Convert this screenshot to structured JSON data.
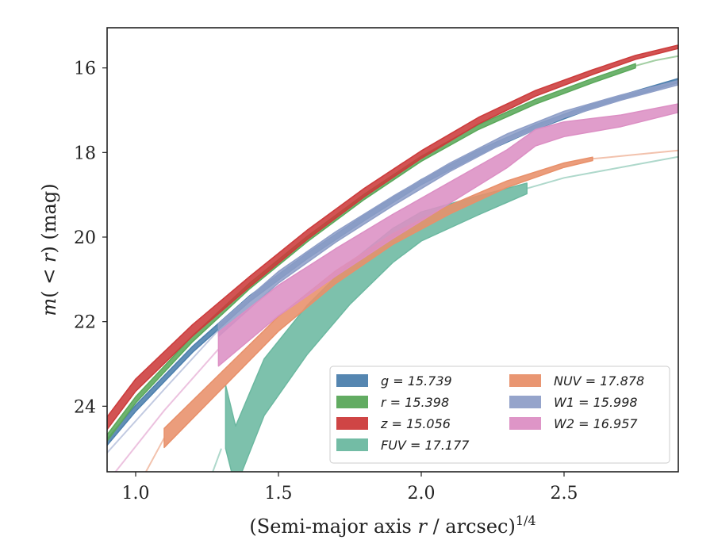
{
  "chart_data": {
    "type": "line",
    "xlabel": "(Semi-major axis r / arcsec)^1/4",
    "ylabel": "m(< r) (mag)",
    "xlim": [
      0.9,
      2.9
    ],
    "ylim": [
      25.55,
      15.05
    ],
    "y_inverted": true,
    "grid": false,
    "legend_position": "bottom-right",
    "legend_columns": 2,
    "x_ticks": [
      {
        "value": 1.0,
        "label": "1.0"
      },
      {
        "value": 1.5,
        "label": "1.5"
      },
      {
        "value": 2.0,
        "label": "2.0"
      },
      {
        "value": 2.5,
        "label": "2.5"
      }
    ],
    "y_ticks": [
      {
        "value": 16,
        "label": "16"
      },
      {
        "value": 18,
        "label": "18"
      },
      {
        "value": 20,
        "label": "20"
      },
      {
        "value": 22,
        "label": "22"
      },
      {
        "value": 24,
        "label": "24"
      }
    ],
    "series": [
      {
        "name": "g = 15.739",
        "sym": "g",
        "rest": " = 15.739",
        "color": "#4c7fad",
        "measured": [
          [
            0.9,
            24.85
          ],
          [
            1.0,
            24.05
          ],
          [
            1.2,
            22.65
          ],
          [
            1.4,
            21.45
          ],
          [
            1.6,
            20.45
          ],
          [
            1.8,
            19.55
          ],
          [
            2.0,
            18.7
          ],
          [
            2.2,
            18.0
          ],
          [
            2.4,
            17.4
          ],
          [
            2.6,
            16.9
          ],
          [
            2.75,
            16.6
          ],
          [
            2.9,
            16.3
          ]
        ],
        "width_start": [
          1.0,
          0.15
        ],
        "width_end": [
          1.0,
          0.1
        ],
        "extrap_start": [],
        "extrap_end": [
          [
            2.9,
            16.3
          ],
          [
            2.9,
            16.1
          ]
        ]
      },
      {
        "name": "r = 15.398",
        "sym": "r",
        "rest": " = 15.398",
        "color": "#5aa85a",
        "measured": [
          [
            0.9,
            24.75
          ],
          [
            1.0,
            23.85
          ],
          [
            1.2,
            22.4
          ],
          [
            1.4,
            21.15
          ],
          [
            1.6,
            20.05
          ],
          [
            1.8,
            19.05
          ],
          [
            2.0,
            18.15
          ],
          [
            2.2,
            17.4
          ],
          [
            2.4,
            16.8
          ],
          [
            2.6,
            16.3
          ],
          [
            2.75,
            15.95
          ]
        ],
        "width_start": [
          1.0,
          0.15
        ],
        "width_end": [
          1.0,
          0.1
        ],
        "extrap_start": [],
        "extrap_end": [
          [
            2.75,
            15.95
          ],
          [
            2.82,
            15.82
          ],
          [
            2.9,
            15.72
          ]
        ]
      },
      {
        "name": "z = 15.056",
        "sym": "z",
        "rest": " = 15.056",
        "color": "#cc3b3b",
        "measured": [
          [
            0.9,
            24.4
          ],
          [
            1.0,
            23.5
          ],
          [
            1.2,
            22.2
          ],
          [
            1.4,
            21.05
          ],
          [
            1.6,
            19.95
          ],
          [
            1.8,
            18.95
          ],
          [
            2.0,
            18.05
          ],
          [
            2.2,
            17.25
          ],
          [
            2.4,
            16.6
          ],
          [
            2.6,
            16.1
          ],
          [
            2.75,
            15.75
          ],
          [
            2.9,
            15.5
          ]
        ],
        "width_start": [
          1.0,
          0.3
        ],
        "width_end": [
          1.0,
          0.08
        ],
        "extrap_start": [],
        "extrap_end": []
      },
      {
        "name": "FUV = 17.177",
        "sym": "FUV",
        "rest": " = 17.177",
        "color": "#6bb8a0",
        "measured": [
          [
            1.315,
            24.25
          ],
          [
            1.35,
            25.2
          ],
          [
            1.45,
            23.55
          ],
          [
            1.6,
            22.2
          ],
          [
            1.75,
            21.1
          ],
          [
            1.9,
            20.2
          ],
          [
            2.0,
            19.75
          ],
          [
            2.2,
            19.25
          ],
          [
            2.37,
            18.85
          ]
        ],
        "width_start": [
          1.4,
          1.5
        ],
        "width_end": [
          0.9,
          0.25
        ],
        "extrap_start": [
          [
            1.27,
            25.55
          ],
          [
            1.3,
            25.0
          ]
        ],
        "extrap_end": [
          [
            2.37,
            18.85
          ],
          [
            2.5,
            18.6
          ],
          [
            2.7,
            18.35
          ],
          [
            2.9,
            18.1
          ]
        ]
      },
      {
        "name": "NUV = 17.878",
        "sym": "NUV",
        "rest": " = 17.878",
        "color": "#e8906a",
        "measured": [
          [
            1.1,
            24.75
          ],
          [
            1.3,
            23.4
          ],
          [
            1.5,
            22.05
          ],
          [
            1.7,
            20.95
          ],
          [
            1.9,
            20.05
          ],
          [
            2.1,
            19.35
          ],
          [
            2.3,
            18.75
          ],
          [
            2.5,
            18.3
          ],
          [
            2.6,
            18.15
          ]
        ],
        "width_start": [
          1.0,
          0.45
        ],
        "width_end": [
          1.0,
          0.08
        ],
        "extrap_start": [
          [
            0.9,
            27.2
          ],
          [
            1.0,
            26.0
          ],
          [
            1.1,
            24.75
          ]
        ],
        "extrap_end": [
          [
            2.6,
            18.15
          ],
          [
            2.75,
            18.05
          ],
          [
            2.9,
            17.95
          ]
        ]
      },
      {
        "name": "W1 = 15.998",
        "sym": "W1",
        "rest": " = 15.998",
        "color": "#8f9fc8",
        "measured": [
          [
            1.29,
            22.2
          ],
          [
            1.5,
            20.95
          ],
          [
            1.7,
            20.0
          ],
          [
            1.9,
            19.15
          ],
          [
            2.1,
            18.35
          ],
          [
            2.3,
            17.65
          ],
          [
            2.5,
            17.1
          ],
          [
            2.7,
            16.7
          ],
          [
            2.9,
            16.35
          ]
        ],
        "width_start": [
          1.0,
          0.3
        ],
        "width_end": [
          1.0,
          0.1
        ],
        "extrap_start": [
          [
            0.9,
            25.1
          ],
          [
            1.1,
            23.6
          ],
          [
            1.29,
            22.2
          ]
        ],
        "extrap_end": []
      },
      {
        "name": "W2 = 16.957",
        "sym": "W2",
        "rest": " = 16.957",
        "color": "#dc8fc4",
        "measured": [
          [
            1.29,
            22.65
          ],
          [
            1.5,
            21.5
          ],
          [
            1.7,
            20.6
          ],
          [
            1.9,
            19.75
          ],
          [
            2.1,
            18.95
          ],
          [
            2.3,
            18.15
          ],
          [
            2.4,
            17.65
          ],
          [
            2.5,
            17.45
          ],
          [
            2.7,
            17.25
          ],
          [
            2.9,
            16.95
          ]
        ],
        "width_start": [
          1.0,
          0.8
        ],
        "width_end": [
          1.0,
          0.2
        ],
        "extrap_start": [
          [
            0.9,
            25.8
          ],
          [
            1.1,
            24.1
          ],
          [
            1.29,
            22.65
          ]
        ],
        "extrap_end": []
      }
    ]
  }
}
